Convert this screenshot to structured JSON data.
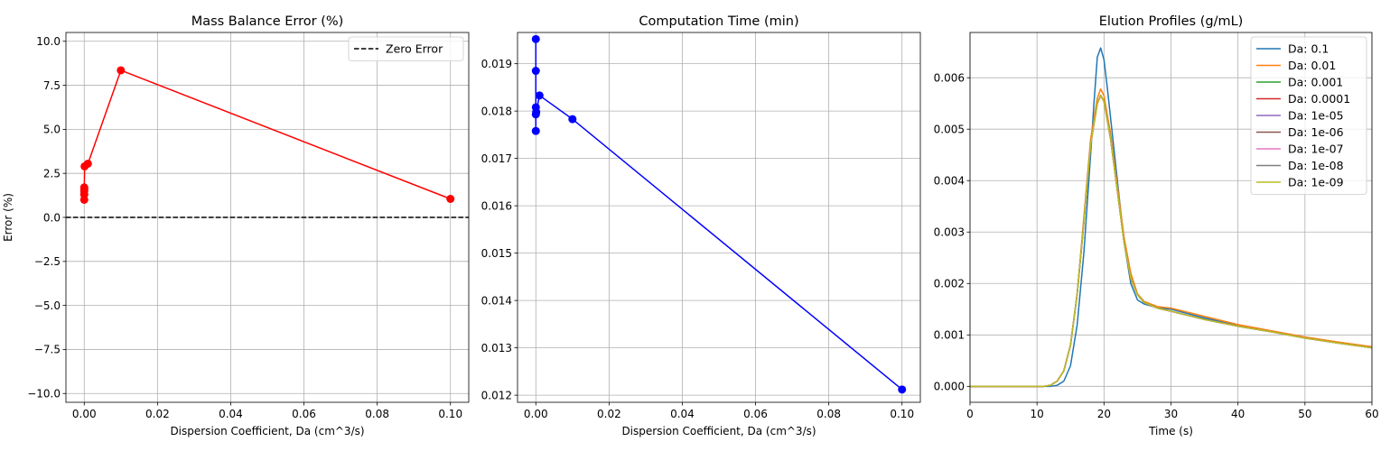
{
  "chart_data": [
    {
      "type": "line",
      "title": "Mass Balance Error (%)",
      "xlabel": "Dispersion Coefficient, Da (cm^3/s)",
      "ylabel": "Error (%)",
      "xlim": [
        -0.005,
        0.105
      ],
      "ylim": [
        -10.5,
        10.5
      ],
      "xticks": [
        0.0,
        0.02,
        0.04,
        0.06,
        0.08,
        0.1
      ],
      "xtick_labels": [
        "0.00",
        "0.02",
        "0.04",
        "0.06",
        "0.08",
        "0.10"
      ],
      "yticks": [
        -10.0,
        -7.5,
        -5.0,
        -2.5,
        0.0,
        2.5,
        5.0,
        7.5,
        10.0
      ],
      "ytick_labels": [
        "−10.0",
        "−7.5",
        "−5.0",
        "−2.5",
        "0.0",
        "2.5",
        "5.0",
        "7.5",
        "10.0"
      ],
      "grid": true,
      "legend_position": "top-right",
      "series": [
        {
          "name": "",
          "color": "#ff0000",
          "marker": "circle",
          "x": [
            1e-09,
            1e-08,
            1e-07,
            1e-06,
            1e-05,
            0.0001,
            0.001,
            0.01,
            0.1
          ],
          "y": [
            1.0,
            1.3,
            1.5,
            1.7,
            1.6,
            2.9,
            3.05,
            8.35,
            1.05
          ]
        }
      ],
      "hlines": [
        {
          "name": "Zero Error",
          "y": 0.0,
          "color": "#000000",
          "dash": true
        }
      ],
      "legend": [
        "Zero Error"
      ]
    },
    {
      "type": "line",
      "title": "Computation Time (min)",
      "xlabel": "Dispersion Coefficient, Da (cm^3/s)",
      "ylabel": "",
      "xlim": [
        -0.005,
        0.105
      ],
      "ylim": [
        0.01185,
        0.01966
      ],
      "xticks": [
        0.0,
        0.02,
        0.04,
        0.06,
        0.08,
        0.1
      ],
      "xtick_labels": [
        "0.00",
        "0.02",
        "0.04",
        "0.06",
        "0.08",
        "0.10"
      ],
      "yticks": [
        0.012,
        0.013,
        0.014,
        0.015,
        0.016,
        0.017,
        0.018,
        0.019
      ],
      "ytick_labels": [
        "0.012",
        "0.013",
        "0.014",
        "0.015",
        "0.016",
        "0.017",
        "0.018",
        "0.019"
      ],
      "grid": true,
      "series": [
        {
          "name": "",
          "color": "#0000ff",
          "marker": "circle",
          "x": [
            1e-09,
            1e-08,
            1e-07,
            1e-06,
            1e-05,
            0.0001,
            0.001,
            0.01,
            0.1
          ],
          "y": [
            0.01758,
            0.01952,
            0.01885,
            0.01793,
            0.01808,
            0.01798,
            0.01833,
            0.01783,
            0.01212
          ]
        }
      ]
    },
    {
      "type": "line",
      "title": "Elution Profiles (g/mL)",
      "xlabel": "Time (s)",
      "ylabel": "",
      "xlim": [
        0,
        60
      ],
      "ylim": [
        -0.00031,
        0.00688
      ],
      "xticks": [
        0,
        10,
        20,
        30,
        40,
        50,
        60
      ],
      "xtick_labels": [
        "0",
        "10",
        "20",
        "30",
        "40",
        "50",
        "60"
      ],
      "yticks": [
        0.0,
        0.001,
        0.002,
        0.003,
        0.004,
        0.005,
        0.006
      ],
      "ytick_labels": [
        "0.000",
        "0.001",
        "0.002",
        "0.003",
        "0.004",
        "0.005",
        "0.006"
      ],
      "grid": true,
      "legend_position": "top-right",
      "series": [
        {
          "name": "Da: 0.1",
          "color": "#1f77b4",
          "x": [
            0,
            12,
            13,
            14,
            15,
            16,
            17,
            18,
            18.5,
            19,
            19.5,
            20,
            20.5,
            21,
            22,
            23,
            24,
            25,
            26,
            28,
            30,
            35,
            40,
            45,
            50,
            55,
            60
          ],
          "y": [
            0,
            0,
            2e-05,
            0.0001,
            0.0004,
            0.0012,
            0.0026,
            0.0045,
            0.0055,
            0.0064,
            0.00658,
            0.00635,
            0.0058,
            0.0052,
            0.004,
            0.0028,
            0.002,
            0.00168,
            0.0016,
            0.00153,
            0.0015,
            0.00133,
            0.00118,
            0.00107,
            0.00095,
            0.00085,
            0.00075
          ]
        },
        {
          "name": "Da: 0.01",
          "color": "#ff7f0e",
          "x": [
            0,
            11,
            12,
            13,
            14,
            15,
            16,
            17,
            18,
            19,
            19.5,
            20,
            21,
            22,
            23,
            24,
            25,
            26,
            28,
            30,
            35,
            40,
            45,
            50,
            55,
            60
          ],
          "y": [
            0,
            0,
            2e-05,
            0.0001,
            0.0003,
            0.0008,
            0.0018,
            0.0033,
            0.0048,
            0.0056,
            0.00578,
            0.00565,
            0.0049,
            0.0039,
            0.0029,
            0.0022,
            0.0018,
            0.00165,
            0.00155,
            0.00152,
            0.00136,
            0.0012,
            0.00108,
            0.00096,
            0.00086,
            0.00077
          ]
        },
        {
          "name": "Da: 0.001",
          "color": "#2ca02c",
          "x": [
            0,
            11,
            12,
            13,
            14,
            15,
            16,
            17,
            18,
            19,
            19.5,
            20,
            21,
            22,
            23,
            24,
            25,
            26,
            28,
            30,
            35,
            40,
            45,
            50,
            55,
            60
          ],
          "y": [
            0,
            0,
            2e-05,
            0.0001,
            0.0003,
            0.0008,
            0.0018,
            0.0032,
            0.0047,
            0.0055,
            0.00566,
            0.00555,
            0.0048,
            0.0038,
            0.0028,
            0.0021,
            0.00178,
            0.00163,
            0.00152,
            0.00146,
            0.0013,
            0.00117,
            0.00106,
            0.00094,
            0.00084,
            0.00075
          ]
        },
        {
          "name": "Da: 0.0001",
          "color": "#d62728",
          "x": [
            0,
            11,
            12,
            13,
            14,
            15,
            16,
            17,
            18,
            19,
            19.5,
            20,
            21,
            22,
            23,
            24,
            25,
            26,
            28,
            30,
            35,
            40,
            45,
            50,
            55,
            60
          ],
          "y": [
            0,
            0,
            2e-05,
            0.0001,
            0.0003,
            0.0008,
            0.0018,
            0.0032,
            0.0047,
            0.0055,
            0.00565,
            0.00554,
            0.0048,
            0.0038,
            0.0028,
            0.0021,
            0.00178,
            0.00163,
            0.00152,
            0.00146,
            0.0013,
            0.00117,
            0.00106,
            0.00094,
            0.00084,
            0.00075
          ]
        },
        {
          "name": "Da: 1e-05",
          "color": "#9467bd",
          "x": [
            0,
            11,
            12,
            13,
            14,
            15,
            16,
            17,
            18,
            19,
            19.5,
            20,
            21,
            22,
            23,
            24,
            25,
            26,
            28,
            30,
            35,
            40,
            45,
            50,
            55,
            60
          ],
          "y": [
            0,
            0,
            2e-05,
            0.0001,
            0.0003,
            0.0008,
            0.0018,
            0.0032,
            0.0047,
            0.0055,
            0.00565,
            0.00554,
            0.0048,
            0.0038,
            0.0028,
            0.0021,
            0.00178,
            0.00163,
            0.00152,
            0.00146,
            0.0013,
            0.00117,
            0.00106,
            0.00094,
            0.00084,
            0.00075
          ]
        },
        {
          "name": "Da: 1e-06",
          "color": "#8c564b",
          "x": [
            0,
            11,
            12,
            13,
            14,
            15,
            16,
            17,
            18,
            19,
            19.5,
            20,
            21,
            22,
            23,
            24,
            25,
            26,
            28,
            30,
            35,
            40,
            45,
            50,
            55,
            60
          ],
          "y": [
            0,
            0,
            2e-05,
            0.0001,
            0.0003,
            0.0008,
            0.0018,
            0.0032,
            0.0047,
            0.0055,
            0.00565,
            0.00554,
            0.0048,
            0.0038,
            0.0028,
            0.0021,
            0.00178,
            0.00163,
            0.00152,
            0.00146,
            0.0013,
            0.00117,
            0.00106,
            0.00094,
            0.00084,
            0.00075
          ]
        },
        {
          "name": "Da: 1e-07",
          "color": "#e377c2",
          "x": [
            0,
            11,
            12,
            13,
            14,
            15,
            16,
            17,
            18,
            19,
            19.5,
            20,
            21,
            22,
            23,
            24,
            25,
            26,
            28,
            30,
            35,
            40,
            45,
            50,
            55,
            60
          ],
          "y": [
            0,
            0,
            2e-05,
            0.0001,
            0.0003,
            0.0008,
            0.0018,
            0.0032,
            0.0047,
            0.0055,
            0.00565,
            0.00554,
            0.0048,
            0.0038,
            0.0028,
            0.0021,
            0.00178,
            0.00163,
            0.00152,
            0.00146,
            0.0013,
            0.00117,
            0.00106,
            0.00094,
            0.00084,
            0.00075
          ]
        },
        {
          "name": "Da: 1e-08",
          "color": "#7f7f7f",
          "x": [
            0,
            11,
            12,
            13,
            14,
            15,
            16,
            17,
            18,
            19,
            19.5,
            20,
            21,
            22,
            23,
            24,
            25,
            26,
            28,
            30,
            35,
            40,
            45,
            50,
            55,
            60
          ],
          "y": [
            0,
            0,
            2e-05,
            0.0001,
            0.0003,
            0.0008,
            0.0018,
            0.0032,
            0.0047,
            0.0055,
            0.00565,
            0.00554,
            0.0048,
            0.0038,
            0.0028,
            0.0021,
            0.00178,
            0.00163,
            0.00152,
            0.00146,
            0.0013,
            0.00117,
            0.00106,
            0.00094,
            0.00084,
            0.00075
          ]
        },
        {
          "name": "Da: 1e-09",
          "color": "#bcbd22",
          "x": [
            0,
            11,
            12,
            13,
            14,
            15,
            16,
            17,
            18,
            19,
            19.5,
            20,
            21,
            22,
            23,
            24,
            25,
            26,
            28,
            30,
            35,
            40,
            45,
            50,
            55,
            60
          ],
          "y": [
            0,
            0,
            2e-05,
            0.0001,
            0.0003,
            0.0008,
            0.0018,
            0.0032,
            0.0047,
            0.0055,
            0.00565,
            0.00554,
            0.0048,
            0.0038,
            0.0028,
            0.0021,
            0.00178,
            0.00163,
            0.00152,
            0.00146,
            0.0013,
            0.00117,
            0.00106,
            0.00094,
            0.00084,
            0.00075
          ]
        }
      ],
      "legend": [
        "Da: 0.1",
        "Da: 0.01",
        "Da: 0.001",
        "Da: 0.0001",
        "Da: 1e-05",
        "Da: 1e-06",
        "Da: 1e-07",
        "Da: 1e-08",
        "Da: 1e-09"
      ]
    }
  ]
}
